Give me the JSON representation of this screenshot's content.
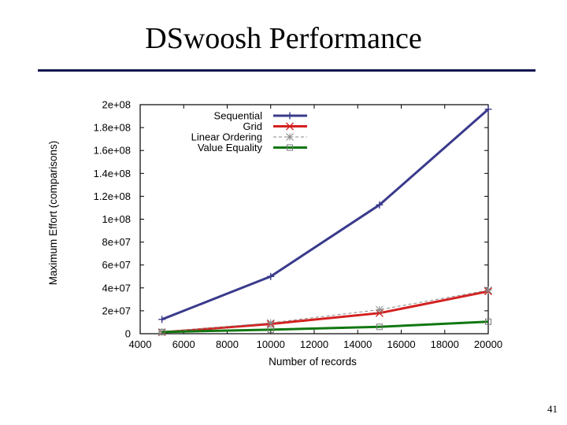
{
  "slide": {
    "title": "DSwoosh Performance",
    "page_number": "41",
    "rule_color": "#141450"
  },
  "chart_data": {
    "type": "line",
    "title": "",
    "xlabel": "Number of records",
    "ylabel": "Maximum Effort (comparisons)",
    "xlim": [
      4000,
      20000
    ],
    "ylim": [
      0,
      200000000
    ],
    "x_ticks": [
      4000,
      6000,
      8000,
      10000,
      12000,
      14000,
      16000,
      18000,
      20000
    ],
    "x_tick_labels": [
      "4000",
      "6000",
      "8000",
      "10000",
      "12000",
      "14000",
      "16000",
      "18000",
      "20000"
    ],
    "y_ticks": [
      0,
      20000000,
      40000000,
      60000000,
      80000000,
      100000000,
      120000000,
      140000000,
      160000000,
      180000000,
      200000000
    ],
    "y_tick_labels": [
      "0",
      "2e+07",
      "4e+07",
      "6e+07",
      "8e+07",
      "1e+08",
      "1.2e+08",
      "1.4e+08",
      "1.6e+08",
      "1.8e+08",
      "2e+08"
    ],
    "grid": false,
    "legend_position": "top-left",
    "series": [
      {
        "name": "Sequential",
        "color": "#3a3a8c",
        "marker": "plus",
        "dashed": false,
        "x": [
          5000,
          10000,
          15000,
          20000
        ],
        "y": [
          12500000,
          50000000,
          112500000,
          196000000
        ]
      },
      {
        "name": "Grid",
        "color": "#d42020",
        "marker": "cross",
        "dashed": false,
        "x": [
          5000,
          10000,
          15000,
          20000
        ],
        "y": [
          1200000,
          8500000,
          18000000,
          37000000
        ]
      },
      {
        "name": "Linear Ordering",
        "color": "#888888",
        "marker": "star",
        "dashed": true,
        "x": [
          5000,
          10000,
          15000,
          20000
        ],
        "y": [
          1500000,
          9500000,
          21000000,
          38000000
        ]
      },
      {
        "name": "Value Equality",
        "color": "#117711",
        "marker": "square",
        "dashed": false,
        "x": [
          5000,
          10000,
          15000,
          20000
        ],
        "y": [
          1500000,
          3500000,
          6000000,
          10500000
        ]
      }
    ]
  }
}
